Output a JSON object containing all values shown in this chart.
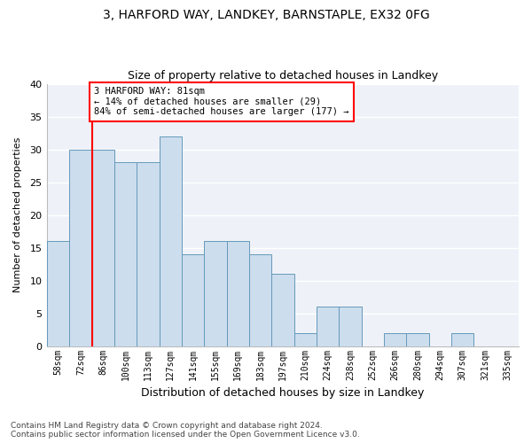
{
  "title1": "3, HARFORD WAY, LANDKEY, BARNSTAPLE, EX32 0FG",
  "title2": "Size of property relative to detached houses in Landkey",
  "xlabel": "Distribution of detached houses by size in Landkey",
  "ylabel": "Number of detached properties",
  "categories": [
    "58sqm",
    "72sqm",
    "86sqm",
    "100sqm",
    "113sqm",
    "127sqm",
    "141sqm",
    "155sqm",
    "169sqm",
    "183sqm",
    "197sqm",
    "210sqm",
    "224sqm",
    "238sqm",
    "252sqm",
    "266sqm",
    "280sqm",
    "294sqm",
    "307sqm",
    "321sqm",
    "335sqm"
  ],
  "values": [
    16,
    30,
    30,
    28,
    28,
    32,
    14,
    16,
    16,
    14,
    11,
    2,
    6,
    6,
    0,
    2,
    2,
    0,
    2,
    0,
    0
  ],
  "bar_color": "#ccdded",
  "bar_edge_color": "#6699bb",
  "annotation_text": "3 HARFORD WAY: 81sqm\n← 14% of detached houses are smaller (29)\n84% of semi-detached houses are larger (177) →",
  "vline_color": "red",
  "vline_x_index": 1.5,
  "ylim": [
    0,
    40
  ],
  "yticks": [
    0,
    5,
    10,
    15,
    20,
    25,
    30,
    35,
    40
  ],
  "background_color": "#eef2f8",
  "grid_color": "white",
  "footer": "Contains HM Land Registry data © Crown copyright and database right 2024.\nContains public sector information licensed under the Open Government Licence v3.0."
}
